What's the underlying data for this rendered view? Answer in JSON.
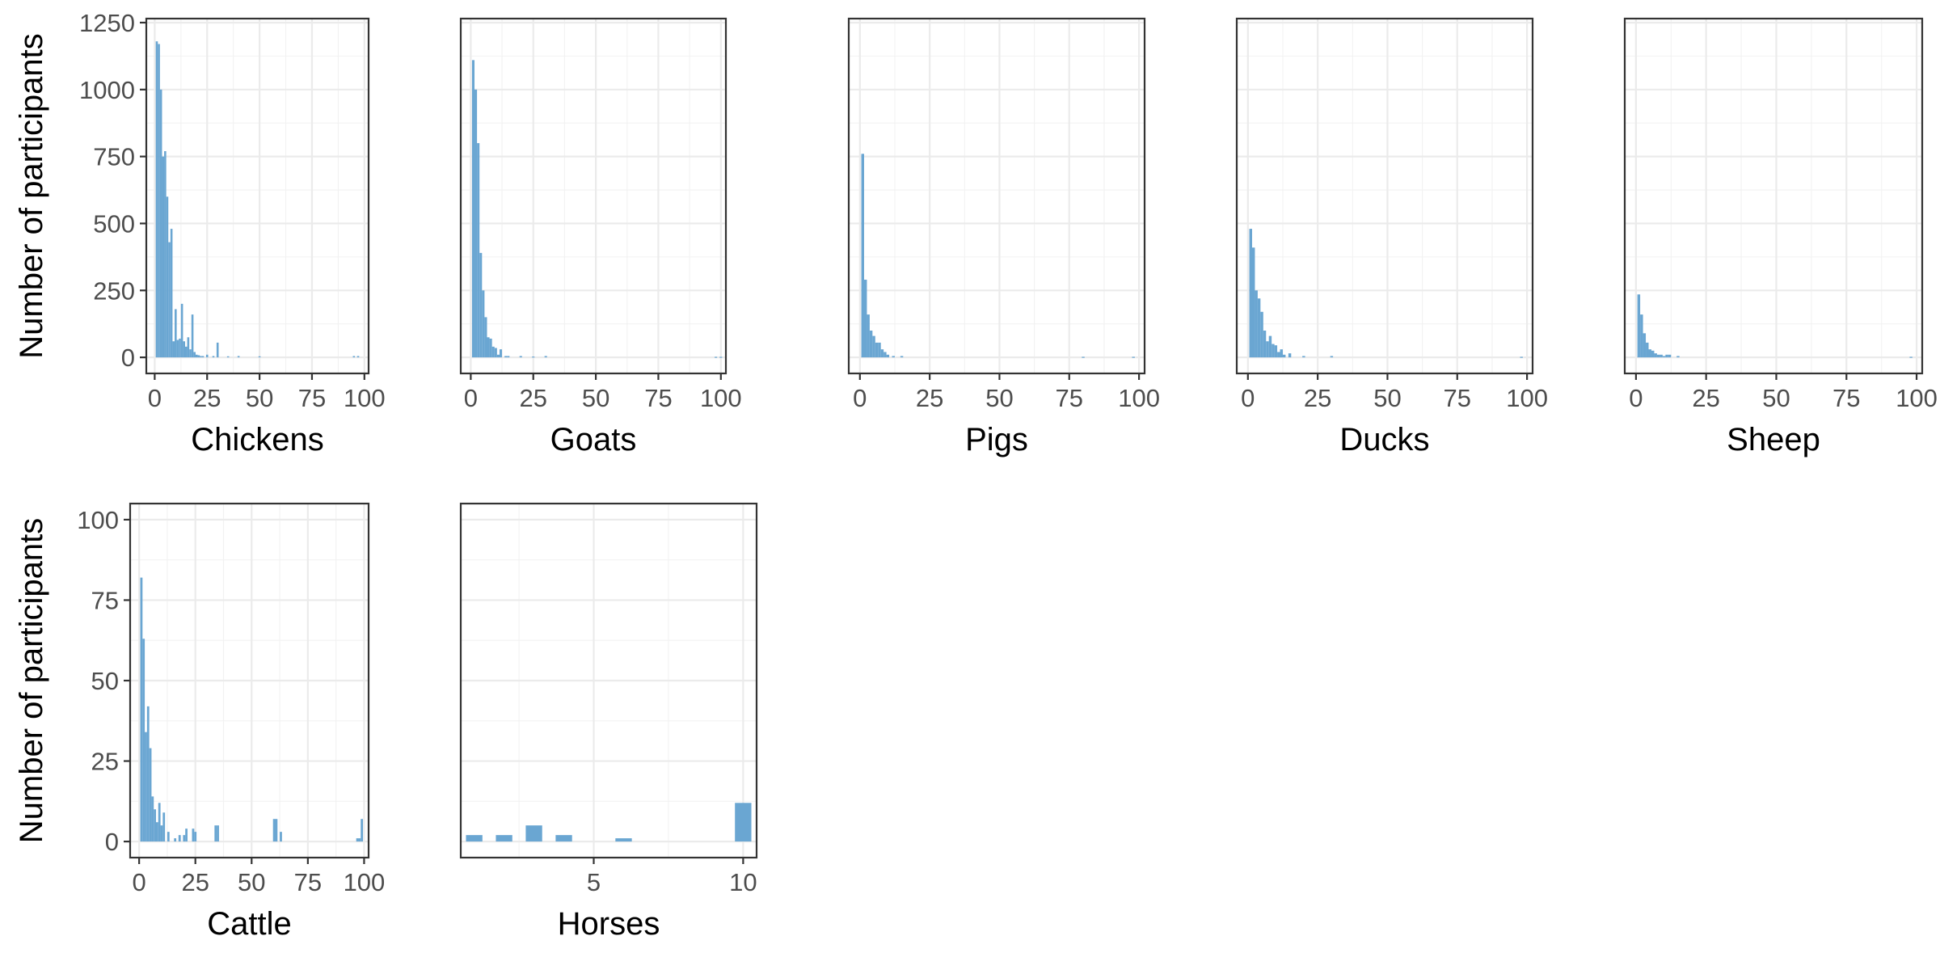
{
  "colors": {
    "bar": "#6aa6d2",
    "frame": "#333333",
    "grid": "#ebebeb",
    "tick_text": "#4d4d4d"
  },
  "chart_data": [
    {
      "type": "bar",
      "xlabel": "Chickens",
      "ylabel": "Number of participants",
      "xlim": [
        -4,
        102
      ],
      "ylim": [
        -60,
        1265
      ],
      "xticks": [
        0,
        25,
        50,
        75,
        100
      ],
      "yticks": [
        0,
        250,
        500,
        750,
        1000,
        1250
      ],
      "bin_width": 1,
      "x": [
        1,
        2,
        3,
        4,
        5,
        6,
        7,
        8,
        9,
        10,
        11,
        12,
        13,
        14,
        15,
        16,
        17,
        18,
        19,
        20,
        21,
        22,
        23,
        25,
        28,
        30,
        35,
        40,
        50,
        95,
        97
      ],
      "values": [
        1180,
        1170,
        1000,
        750,
        770,
        600,
        430,
        480,
        60,
        180,
        65,
        70,
        200,
        60,
        40,
        75,
        30,
        160,
        20,
        10,
        8,
        5,
        5,
        10,
        5,
        55,
        4,
        5,
        4,
        5,
        5
      ]
    },
    {
      "type": "bar",
      "xlabel": "Goats",
      "ylabel": "",
      "xlim": [
        -4,
        102
      ],
      "ylim": [
        -60,
        1265
      ],
      "xticks": [
        0,
        25,
        50,
        75,
        100
      ],
      "yticks": [
        0,
        250,
        500,
        750,
        1000,
        1250
      ],
      "bin_width": 1,
      "x": [
        1,
        2,
        3,
        4,
        5,
        6,
        7,
        8,
        9,
        10,
        11,
        12,
        14,
        15,
        20,
        25,
        30,
        98,
        100
      ],
      "values": [
        1110,
        1000,
        800,
        390,
        250,
        150,
        75,
        70,
        40,
        35,
        10,
        30,
        5,
        5,
        5,
        3,
        5,
        2,
        2
      ]
    },
    {
      "type": "bar",
      "xlabel": "Pigs",
      "ylabel": "",
      "xlim": [
        -4,
        102
      ],
      "ylim": [
        -60,
        1265
      ],
      "xticks": [
        0,
        25,
        50,
        75,
        100
      ],
      "yticks": [
        0,
        250,
        500,
        750,
        1000,
        1250
      ],
      "bin_width": 1,
      "x": [
        1,
        2,
        3,
        4,
        5,
        6,
        7,
        8,
        9,
        10,
        12,
        15,
        80,
        98
      ],
      "values": [
        760,
        290,
        160,
        100,
        80,
        55,
        55,
        30,
        20,
        10,
        5,
        5,
        2,
        2
      ]
    },
    {
      "type": "bar",
      "xlabel": "Ducks",
      "ylabel": "",
      "xlim": [
        -4,
        102
      ],
      "ylim": [
        -60,
        1265
      ],
      "xticks": [
        0,
        25,
        50,
        75,
        100
      ],
      "yticks": [
        0,
        250,
        500,
        750,
        1000,
        1250
      ],
      "bin_width": 1,
      "x": [
        1,
        2,
        3,
        4,
        5,
        6,
        7,
        8,
        9,
        10,
        11,
        12,
        13,
        15,
        20,
        30,
        98
      ],
      "values": [
        480,
        410,
        250,
        220,
        170,
        100,
        60,
        80,
        50,
        45,
        20,
        30,
        10,
        15,
        5,
        5,
        2
      ]
    },
    {
      "type": "bar",
      "xlabel": "Sheep",
      "ylabel": "",
      "xlim": [
        -4,
        102
      ],
      "ylim": [
        -60,
        1265
      ],
      "xticks": [
        0,
        25,
        50,
        75,
        100
      ],
      "yticks": [
        0,
        250,
        500,
        750,
        1000,
        1250
      ],
      "bin_width": 1,
      "x": [
        1,
        2,
        3,
        4,
        5,
        6,
        7,
        8,
        9,
        10,
        11,
        12,
        15,
        98
      ],
      "values": [
        235,
        160,
        90,
        55,
        30,
        25,
        15,
        10,
        10,
        5,
        10,
        10,
        5,
        2
      ]
    },
    {
      "type": "bar",
      "xlabel": "Cattle",
      "ylabel": "Number of participants",
      "xlim": [
        -4,
        102
      ],
      "ylim": [
        -5,
        105
      ],
      "xticks": [
        0,
        25,
        50,
        75,
        100
      ],
      "yticks": [
        0,
        25,
        50,
        75,
        100
      ],
      "bin_width": 1,
      "x": [
        1,
        2,
        3,
        4,
        5,
        6,
        7,
        8,
        9,
        10,
        11,
        13,
        16,
        18,
        20,
        21,
        24,
        25,
        34,
        35,
        60,
        61,
        63,
        97,
        98,
        99
      ],
      "values": [
        82,
        63,
        34,
        42,
        29,
        14,
        10,
        6,
        12,
        5,
        9,
        3,
        1,
        2,
        2,
        4,
        4,
        3,
        5,
        5,
        7,
        7,
        3,
        1,
        1,
        7
      ]
    },
    {
      "type": "bar",
      "xlabel": "Horses",
      "ylabel": "",
      "xlim": [
        0.55,
        10.45
      ],
      "ylim": [
        -5,
        105
      ],
      "xticks": [
        5,
        10
      ],
      "yticks": [
        0,
        25,
        50,
        75,
        100
      ],
      "bin_width": 0.55,
      "x": [
        1,
        2,
        3,
        4,
        6,
        10
      ],
      "values": [
        2,
        2,
        5,
        2,
        1,
        12
      ]
    }
  ]
}
